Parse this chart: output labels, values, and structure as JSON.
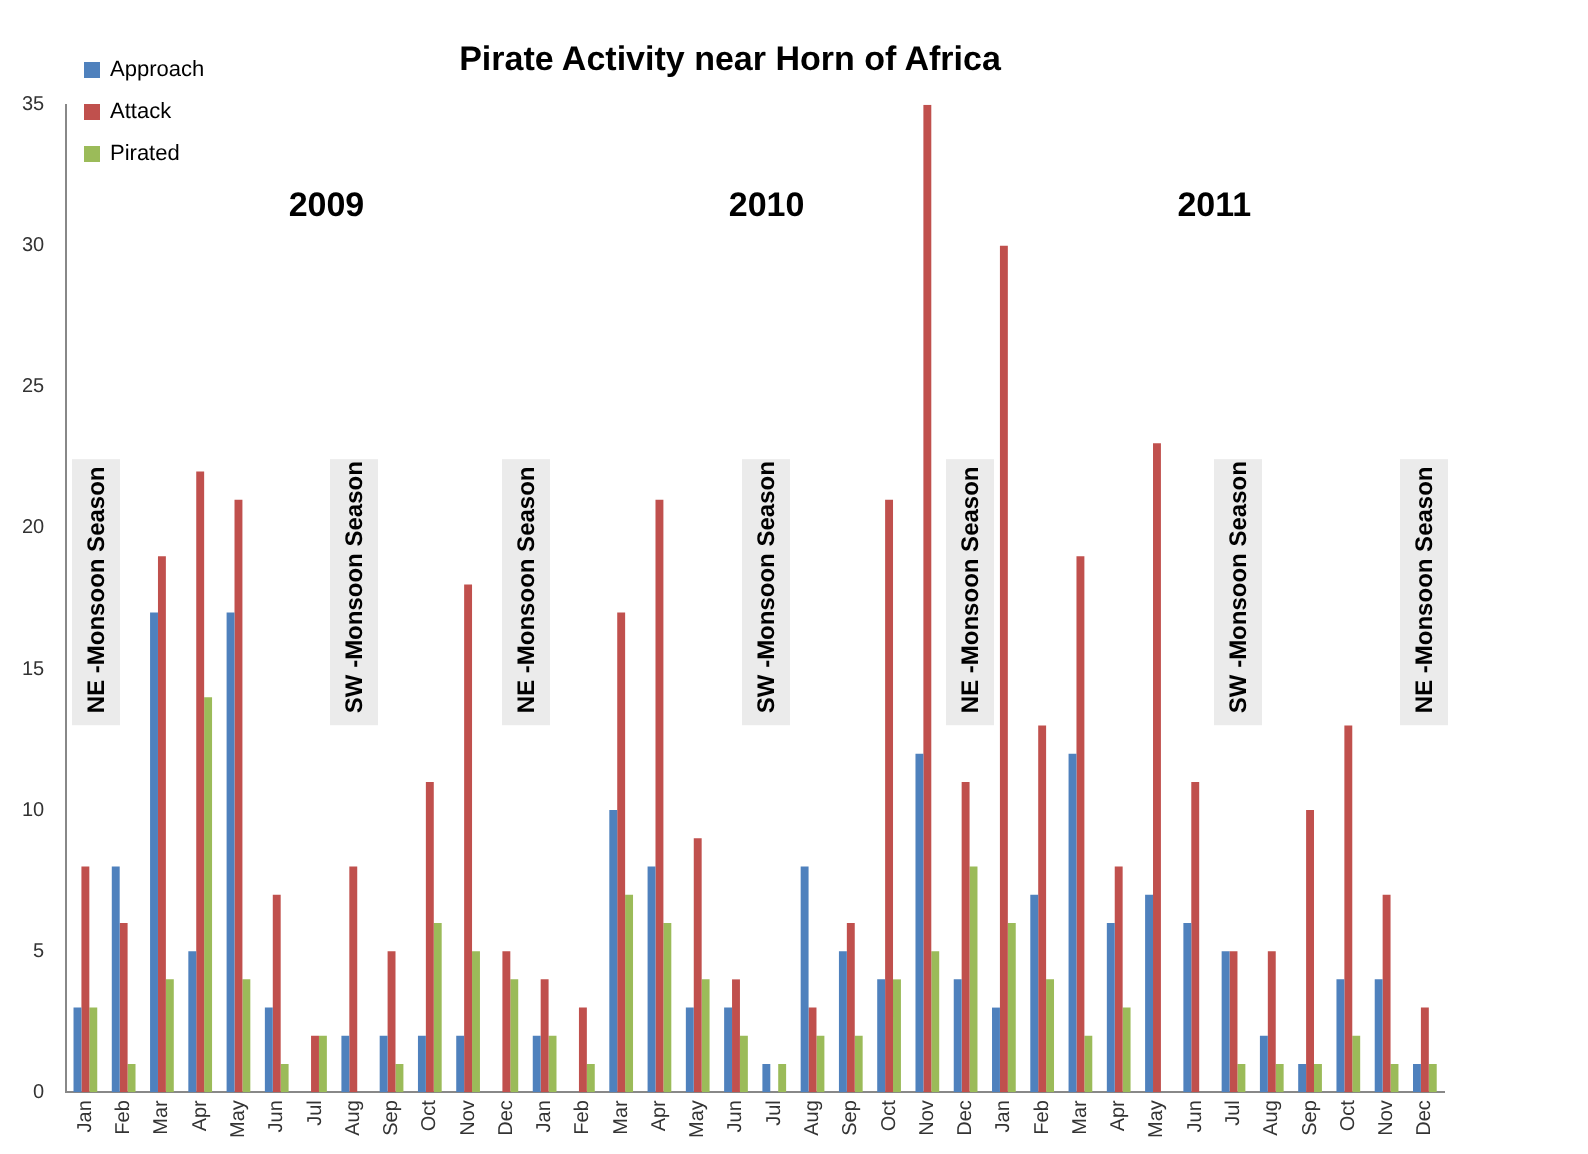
{
  "chart_data": {
    "type": "bar",
    "title": "Pirate Activity near Horn of Africa",
    "categories": [
      "Jan",
      "Feb",
      "Mar",
      "Apr",
      "May",
      "Jun",
      "Jul",
      "Aug",
      "Sep",
      "Oct",
      "Nov",
      "Dec",
      "Jan",
      "Feb",
      "Mar",
      "Apr",
      "May",
      "Jun",
      "Jul",
      "Aug",
      "Sep",
      "Oct",
      "Nov",
      "Dec",
      "Jan",
      "Feb",
      "Mar",
      "Apr",
      "May",
      "Jun",
      "Jul",
      "Aug",
      "Sep",
      "Oct",
      "Nov",
      "Dec"
    ],
    "series": [
      {
        "name": "Approach",
        "color": "#4f81bd",
        "values": [
          3,
          8,
          17,
          5,
          17,
          3,
          0,
          2,
          2,
          2,
          2,
          0,
          2,
          0,
          10,
          8,
          3,
          3,
          1,
          8,
          5,
          4,
          12,
          4,
          3,
          7,
          12,
          6,
          7,
          6,
          5,
          2,
          1,
          4,
          4,
          1
        ]
      },
      {
        "name": "Attack",
        "color": "#c0504d",
        "values": [
          8,
          6,
          19,
          22,
          21,
          7,
          2,
          8,
          5,
          11,
          18,
          5,
          4,
          3,
          17,
          21,
          9,
          4,
          0,
          3,
          6,
          21,
          35,
          11,
          30,
          13,
          19,
          8,
          23,
          11,
          5,
          5,
          10,
          13,
          7,
          3
        ]
      },
      {
        "name": "Pirated",
        "color": "#9bbb59",
        "values": [
          3,
          1,
          4,
          14,
          4,
          1,
          2,
          0,
          1,
          6,
          5,
          4,
          2,
          1,
          7,
          6,
          4,
          2,
          1,
          2,
          2,
          4,
          5,
          8,
          6,
          4,
          2,
          3,
          0,
          0,
          1,
          1,
          1,
          2,
          1,
          1
        ]
      }
    ],
    "ylim": [
      0,
      35
    ],
    "yticks": [
      0,
      5,
      10,
      15,
      20,
      25,
      30,
      35
    ],
    "grid": false,
    "legend": "top left",
    "annotations": [
      "2009",
      "2010",
      "2011",
      "NE -Monsoon Season",
      "SW -Monsoon Season",
      "NE -Monsoon Season",
      "SW -Monsoon Season",
      "NE -Monsoon Season",
      "SW -Monsoon Season",
      "NE -Monsoon Season"
    ]
  }
}
